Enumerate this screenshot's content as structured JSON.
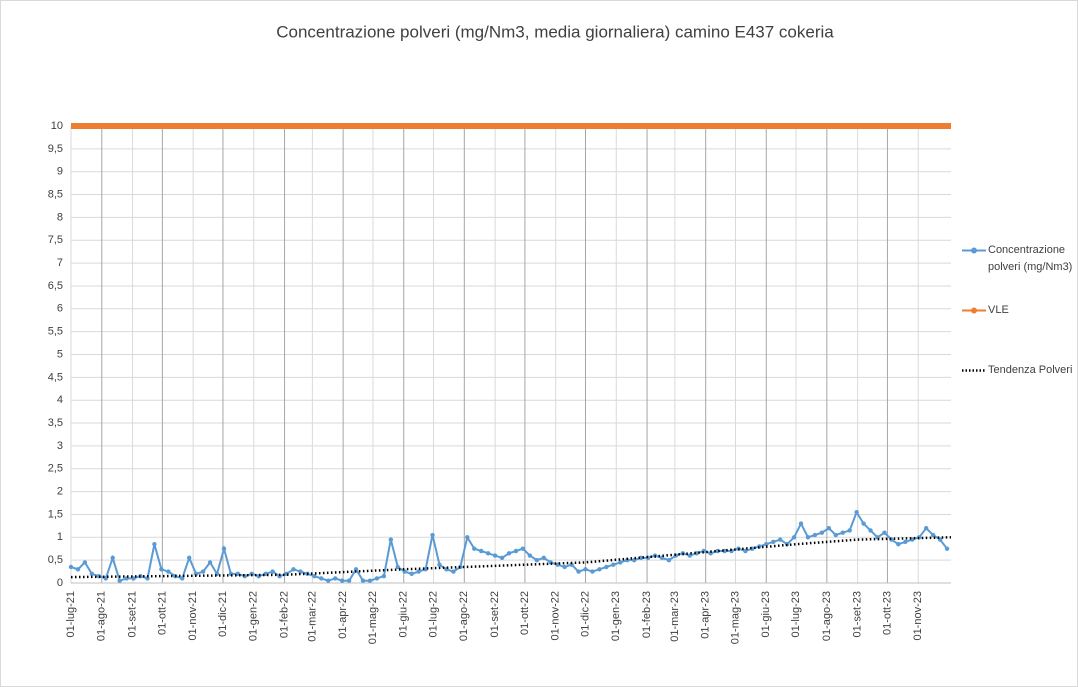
{
  "chart_data": {
    "type": "line",
    "title": "Concentrazione polveri (mg/Nm3, media giornaliera) camino E437 cokeria",
    "xlim": [
      0,
      886
    ],
    "xticks": [
      {
        "value": 0,
        "label": "01-lug-21"
      },
      {
        "value": 31,
        "label": "01-ago-21"
      },
      {
        "value": 62,
        "label": "01-set-21"
      },
      {
        "value": 92,
        "label": "01-ott-21"
      },
      {
        "value": 123,
        "label": "01-nov-21"
      },
      {
        "value": 153,
        "label": "01-dic-21"
      },
      {
        "value": 184,
        "label": "01-gen-22"
      },
      {
        "value": 215,
        "label": "01-feb-22"
      },
      {
        "value": 243,
        "label": "01-mar-22"
      },
      {
        "value": 274,
        "label": "01-apr-22"
      },
      {
        "value": 304,
        "label": "01-mag-22"
      },
      {
        "value": 335,
        "label": "01-giu-22"
      },
      {
        "value": 365,
        "label": "01-lug-22"
      },
      {
        "value": 396,
        "label": "01-ago-22"
      },
      {
        "value": 427,
        "label": "01-set-22"
      },
      {
        "value": 457,
        "label": "01-ott-22"
      },
      {
        "value": 488,
        "label": "01-nov-22"
      },
      {
        "value": 518,
        "label": "01-dic-22"
      },
      {
        "value": 549,
        "label": "01-gen-23"
      },
      {
        "value": 580,
        "label": "01-feb-23"
      },
      {
        "value": 608,
        "label": "01-mar-23"
      },
      {
        "value": 639,
        "label": "01-apr-23"
      },
      {
        "value": 669,
        "label": "01-mag-23"
      },
      {
        "value": 700,
        "label": "01-giu-23"
      },
      {
        "value": 730,
        "label": "01-lug-23"
      },
      {
        "value": 761,
        "label": "01-ago-23"
      },
      {
        "value": 792,
        "label": "01-set-23"
      },
      {
        "value": 822,
        "label": "01-ott-23"
      },
      {
        "value": 853,
        "label": "01-nov-23"
      }
    ],
    "ylim": [
      0,
      10
    ],
    "yticks": [
      0,
      {
        "value": 0.5,
        "label": "0,5"
      },
      1,
      {
        "value": 1.5,
        "label": "1,5"
      },
      2,
      {
        "value": 2.5,
        "label": "2,5"
      },
      3,
      {
        "value": 3.5,
        "label": "3,5"
      },
      4,
      {
        "value": 4.5,
        "label": "4,5"
      },
      5,
      {
        "value": 5.5,
        "label": "5,5"
      },
      6,
      {
        "value": 6.5,
        "label": "6,5"
      },
      7,
      {
        "value": 7.5,
        "label": "7,5"
      },
      8,
      {
        "value": 8.5,
        "label": "8,5"
      },
      9,
      {
        "value": 9.5,
        "label": "9,5"
      },
      10
    ],
    "grid": true,
    "legend": "right",
    "series": [
      {
        "name": "Concentrazione polveri (mg/Nm3)",
        "color": "#5b9bd5",
        "style": "line-markers",
        "x": [
          0,
          7,
          14,
          21,
          28,
          35,
          42,
          49,
          56,
          63,
          70,
          77,
          84,
          91,
          98,
          105,
          112,
          119,
          126,
          133,
          140,
          147,
          154,
          161,
          168,
          175,
          182,
          189,
          196,
          203,
          210,
          217,
          224,
          231,
          238,
          245,
          252,
          259,
          266,
          273,
          280,
          287,
          294,
          301,
          308,
          315,
          322,
          329,
          336,
          343,
          350,
          357,
          364,
          371,
          378,
          385,
          392,
          399,
          406,
          413,
          420,
          427,
          434,
          441,
          448,
          455,
          462,
          469,
          476,
          483,
          490,
          497,
          504,
          511,
          518,
          525,
          532,
          539,
          546,
          553,
          560,
          567,
          574,
          581,
          588,
          595,
          602,
          609,
          616,
          623,
          630,
          637,
          644,
          651,
          658,
          665,
          672,
          679,
          686,
          693,
          700,
          707,
          714,
          721,
          728,
          735,
          742,
          749,
          756,
          763,
          770,
          777,
          784,
          791,
          798,
          805,
          812,
          819,
          826,
          833,
          840,
          847,
          854,
          861,
          868,
          875,
          882
        ],
        "values": [
          0.35,
          0.3,
          0.45,
          0.2,
          0.15,
          0.1,
          0.55,
          0.05,
          0.1,
          0.1,
          0.15,
          0.1,
          0.85,
          0.3,
          0.25,
          0.15,
          0.1,
          0.55,
          0.2,
          0.25,
          0.45,
          0.2,
          0.75,
          0.2,
          0.2,
          0.15,
          0.2,
          0.15,
          0.2,
          0.25,
          0.15,
          0.2,
          0.3,
          0.25,
          0.2,
          0.15,
          0.1,
          0.05,
          0.1,
          0.05,
          0.05,
          0.3,
          0.05,
          0.05,
          0.1,
          0.15,
          0.95,
          0.35,
          0.25,
          0.2,
          0.25,
          0.3,
          1.05,
          0.4,
          0.3,
          0.25,
          0.35,
          1.0,
          0.75,
          0.7,
          0.65,
          0.6,
          0.55,
          0.65,
          0.7,
          0.75,
          0.6,
          0.5,
          0.55,
          0.45,
          0.4,
          0.35,
          0.4,
          0.25,
          0.3,
          0.25,
          0.3,
          0.35,
          0.4,
          0.45,
          0.5,
          0.5,
          0.55,
          0.55,
          0.6,
          0.55,
          0.5,
          0.6,
          0.65,
          0.6,
          0.65,
          0.7,
          0.65,
          0.7,
          0.7,
          0.7,
          0.75,
          0.7,
          0.75,
          0.8,
          0.85,
          0.9,
          0.95,
          0.85,
          1.0,
          1.3,
          1.0,
          1.05,
          1.1,
          1.2,
          1.05,
          1.1,
          1.15,
          1.55,
          1.3,
          1.15,
          1.0,
          1.1,
          0.95,
          0.85,
          0.9,
          0.95,
          1.0,
          1.2,
          1.05,
          0.95,
          0.75
        ]
      },
      {
        "name": "VLE",
        "color": "#ed7d31",
        "style": "thick",
        "x": [
          0,
          886
        ],
        "values": [
          10,
          10
        ]
      },
      {
        "name": "Tendenza Polveri",
        "color": "#000000",
        "style": "dotted",
        "x": [
          0,
          215,
          335,
          518,
          608,
          730,
          792,
          886
        ],
        "values": [
          0.13,
          0.18,
          0.3,
          0.45,
          0.62,
          0.85,
          0.95,
          1.0
        ]
      }
    ]
  }
}
